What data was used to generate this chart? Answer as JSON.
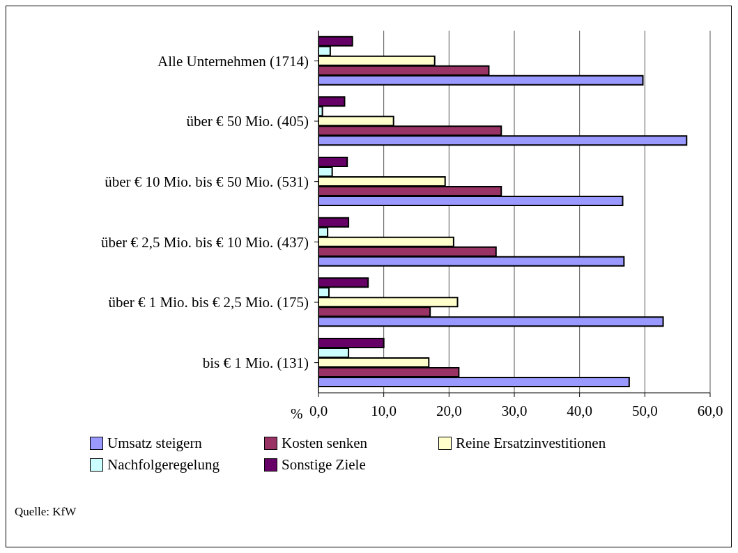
{
  "chart_data": {
    "type": "bar",
    "orientation": "horizontal",
    "xlabel": "%",
    "categories": [
      "Alle Unternehmen (1714)",
      "über € 50 Mio. (405)",
      "über € 10 Mio. bis € 50 Mio. (531)",
      "über € 2,5 Mio. bis € 10 Mio. (437)",
      "über € 1 Mio. bis € 2,5 Mio. (175)",
      "bis € 1 Mio. (131)"
    ],
    "series": [
      {
        "name": "Umsatz steigern",
        "color": "#9999ff",
        "values": [
          49.7,
          56.4,
          46.6,
          46.8,
          52.8,
          47.6
        ]
      },
      {
        "name": "Kosten senken",
        "color": "#993366",
        "values": [
          26.1,
          28.0,
          28.0,
          27.2,
          17.1,
          21.5
        ]
      },
      {
        "name": "Reine Ersatzinvestitionen",
        "color": "#ffffcc",
        "values": [
          17.8,
          11.5,
          19.4,
          20.7,
          21.3,
          16.9
        ]
      },
      {
        "name": "Nachfolgeregelung",
        "color": "#ccffff",
        "values": [
          1.8,
          0.6,
          2.1,
          1.4,
          1.6,
          4.6
        ]
      },
      {
        "name": "Sonstige Ziele",
        "color": "#660066",
        "values": [
          5.2,
          4.0,
          4.4,
          4.6,
          7.6,
          10.0
        ]
      }
    ],
    "xlim": [
      0,
      60
    ],
    "xticks": [
      {
        "value": 0,
        "label": "0,0"
      },
      {
        "value": 10,
        "label": "10,0"
      },
      {
        "value": 20,
        "label": "20,0"
      },
      {
        "value": 30,
        "label": "30,0"
      },
      {
        "value": 40,
        "label": "40,0"
      },
      {
        "value": 50,
        "label": "50,0"
      },
      {
        "value": 60,
        "label": "60,0"
      }
    ],
    "grid": "x",
    "legend": "bottom",
    "annotations": [
      "Quelle: KfW"
    ]
  }
}
